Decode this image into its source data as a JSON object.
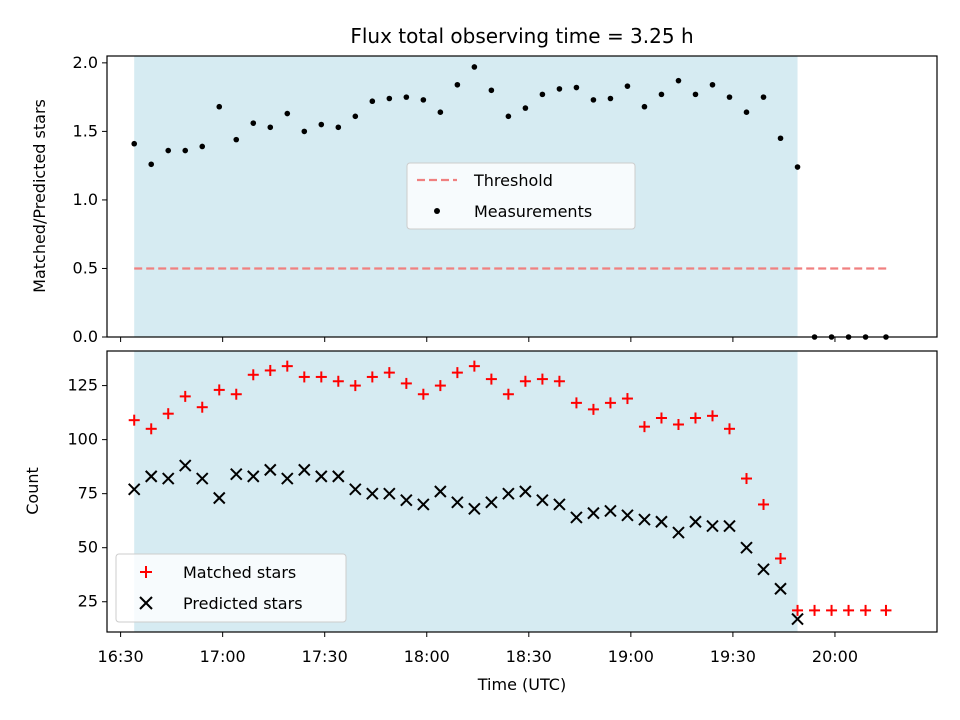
{
  "chart_data": [
    {
      "type": "scatter",
      "title": "Flux total observing time = 3.25 h",
      "ylabel": "Matched/Predicted stars",
      "xlim": [
        "16:26",
        "20:30"
      ],
      "ylim": [
        0,
        2.05
      ],
      "yticks": [
        "0.0",
        "0.5",
        "1.0",
        "1.5",
        "2.0"
      ],
      "shaded_interval": [
        "16:34",
        "19:49"
      ],
      "shade_color": "#add8e6",
      "grid": false,
      "legend_position": "center",
      "series": [
        {
          "name": "Threshold",
          "style": "dashed-line",
          "color": "#f08080",
          "x": [
            "16:34",
            "20:16"
          ],
          "y": [
            0.5,
            0.5
          ]
        },
        {
          "name": "Measurements",
          "style": "dot",
          "color": "#000000",
          "x": [
            "16:34",
            "16:39",
            "16:44",
            "16:49",
            "16:54",
            "16:59",
            "17:04",
            "17:09",
            "17:14",
            "17:19",
            "17:24",
            "17:29",
            "17:34",
            "17:39",
            "17:44",
            "17:49",
            "17:54",
            "17:59",
            "18:04",
            "18:09",
            "18:14",
            "18:19",
            "18:24",
            "18:29",
            "18:34",
            "18:39",
            "18:44",
            "18:49",
            "18:54",
            "18:59",
            "19:04",
            "19:09",
            "19:14",
            "19:19",
            "19:24",
            "19:29",
            "19:34",
            "19:39",
            "19:44",
            "19:49",
            "19:54",
            "19:59",
            "20:04",
            "20:09",
            "20:15"
          ],
          "y": [
            1.41,
            1.26,
            1.36,
            1.36,
            1.39,
            1.68,
            1.44,
            1.56,
            1.53,
            1.63,
            1.5,
            1.55,
            1.53,
            1.61,
            1.72,
            1.74,
            1.75,
            1.73,
            1.64,
            1.84,
            1.97,
            1.8,
            1.61,
            1.67,
            1.77,
            1.81,
            1.82,
            1.73,
            1.74,
            1.83,
            1.68,
            1.77,
            1.87,
            1.77,
            1.84,
            1.75,
            1.64,
            1.75,
            1.45,
            1.24,
            0,
            0,
            0,
            0,
            0
          ]
        }
      ]
    },
    {
      "type": "scatter",
      "xlabel": "Time (UTC)",
      "ylabel": "Count",
      "xlim": [
        "16:26",
        "20:30"
      ],
      "ylim": [
        11,
        141
      ],
      "xticks": [
        "16:30",
        "17:00",
        "17:30",
        "18:00",
        "18:30",
        "19:00",
        "19:30",
        "20:00"
      ],
      "yticks": [
        "25",
        "50",
        "75",
        "100",
        "125"
      ],
      "shaded_interval": [
        "16:34",
        "19:49"
      ],
      "shade_color": "#add8e6",
      "grid": false,
      "legend_position": "lower-left",
      "series": [
        {
          "name": "Matched stars",
          "marker": "plus",
          "color": "#ff0000",
          "x": [
            "16:34",
            "16:39",
            "16:44",
            "16:49",
            "16:54",
            "16:59",
            "17:04",
            "17:09",
            "17:14",
            "17:19",
            "17:24",
            "17:29",
            "17:34",
            "17:39",
            "17:44",
            "17:49",
            "17:54",
            "17:59",
            "18:04",
            "18:09",
            "18:14",
            "18:19",
            "18:24",
            "18:29",
            "18:34",
            "18:39",
            "18:44",
            "18:49",
            "18:54",
            "18:59",
            "19:04",
            "19:09",
            "19:14",
            "19:19",
            "19:24",
            "19:29",
            "19:34",
            "19:39",
            "19:44",
            "19:49",
            "19:54",
            "19:59",
            "20:04",
            "20:09",
            "20:15"
          ],
          "y": [
            109,
            105,
            112,
            120,
            115,
            123,
            121,
            130,
            132,
            134,
            129,
            129,
            127,
            125,
            129,
            131,
            126,
            121,
            125,
            131,
            134,
            128,
            121,
            127,
            128,
            127,
            117,
            114,
            117,
            119,
            106,
            110,
            107,
            110,
            111,
            105,
            82,
            70,
            45,
            21,
            21,
            21,
            21,
            21,
            21
          ]
        },
        {
          "name": "Predicted stars",
          "marker": "x",
          "color": "#000000",
          "x": [
            "16:34",
            "16:39",
            "16:44",
            "16:49",
            "16:54",
            "16:59",
            "17:04",
            "17:09",
            "17:14",
            "17:19",
            "17:24",
            "17:29",
            "17:34",
            "17:39",
            "17:44",
            "17:49",
            "17:54",
            "17:59",
            "18:04",
            "18:09",
            "18:14",
            "18:19",
            "18:24",
            "18:29",
            "18:34",
            "18:39",
            "18:44",
            "18:49",
            "18:54",
            "18:59",
            "19:04",
            "19:09",
            "19:14",
            "19:19",
            "19:24",
            "19:29",
            "19:34",
            "19:39",
            "19:44",
            "19:49"
          ],
          "y": [
            77,
            83,
            82,
            88,
            82,
            73,
            84,
            83,
            86,
            82,
            86,
            83,
            83,
            77,
            75,
            75,
            72,
            70,
            76,
            71,
            68,
            71,
            75,
            76,
            72,
            70,
            64,
            66,
            67,
            65,
            63,
            62,
            57,
            62,
            60,
            60,
            50,
            40,
            31,
            17
          ]
        }
      ]
    }
  ]
}
